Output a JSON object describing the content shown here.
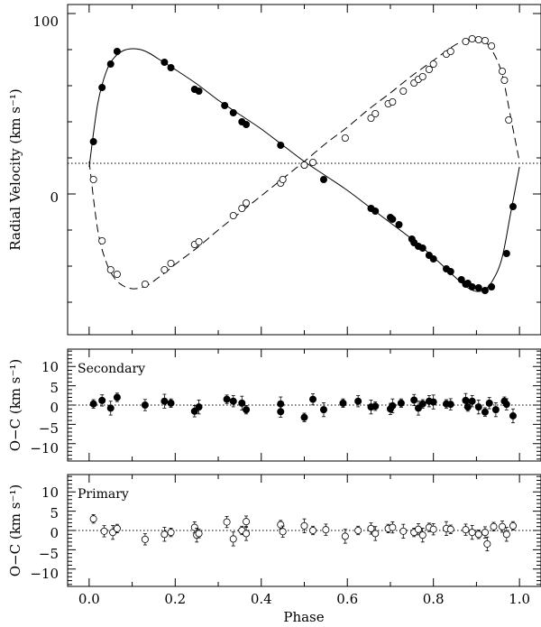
{
  "chart_data": [
    {
      "type": "line",
      "ylabel": "Radial Velocity (km s⁻¹)",
      "xlabel": "",
      "xlim": [
        -0.05,
        1.05
      ],
      "ylim": [
        -78,
        105
      ],
      "yticks_labeled": [
        "0",
        "100"
      ],
      "gamma_velocity": 17,
      "model_curves": [
        {
          "name": "",
          "style": "solid",
          "x": [
            0.0,
            0.02,
            0.04,
            0.06,
            0.08,
            0.1,
            0.12,
            0.14,
            0.16,
            0.18,
            0.2,
            0.25,
            0.3,
            0.35,
            0.4,
            0.45,
            0.5,
            0.55,
            0.6,
            0.65,
            0.7,
            0.75,
            0.8,
            0.85,
            0.88,
            0.9,
            0.92,
            0.94,
            0.96,
            0.98,
            1.0
          ],
          "y": [
            15,
            50,
            68,
            76,
            79.5,
            80.5,
            80,
            78,
            75,
            72,
            69,
            61,
            52,
            44,
            36,
            27,
            18,
            10,
            2,
            -7,
            -16,
            -25,
            -35,
            -46,
            -52,
            -54,
            -53,
            -47,
            -35,
            -10,
            15
          ]
        },
        {
          "name": "",
          "style": "dashed",
          "x": [
            0.0,
            0.02,
            0.04,
            0.06,
            0.08,
            0.1,
            0.12,
            0.14,
            0.16,
            0.18,
            0.2,
            0.25,
            0.3,
            0.35,
            0.4,
            0.45,
            0.5,
            0.55,
            0.6,
            0.65,
            0.7,
            0.75,
            0.8,
            0.85,
            0.88,
            0.9,
            0.92,
            0.94,
            0.96,
            0.98,
            1.0
          ],
          "y": [
            18,
            -20,
            -38,
            -47,
            -51,
            -52.5,
            -52,
            -50,
            -46.5,
            -43,
            -39,
            -30,
            -20,
            -10.5,
            -1,
            8.5,
            18,
            28,
            37,
            47,
            56,
            65.5,
            74,
            82.5,
            85.5,
            86,
            84.5,
            78,
            66,
            42,
            18
          ]
        }
      ],
      "series": [
        {
          "name": "",
          "marker": "filled",
          "x": [
            0.01,
            0.03,
            0.05,
            0.065,
            0.175,
            0.19,
            0.245,
            0.255,
            0.315,
            0.335,
            0.355,
            0.365,
            0.445,
            0.5,
            0.545,
            0.655,
            0.665,
            0.7,
            0.705,
            0.72,
            0.75,
            0.755,
            0.765,
            0.775,
            0.79,
            0.8,
            0.83,
            0.84,
            0.865,
            0.875,
            0.88,
            0.89,
            0.905,
            0.92,
            0.935,
            0.97,
            0.985
          ],
          "y": [
            29,
            59,
            72,
            79,
            73,
            70,
            58,
            57,
            49,
            45,
            40,
            38.5,
            27,
            16,
            8,
            -8,
            -9.5,
            -13,
            -14,
            -17,
            -25,
            -27,
            -29,
            -30,
            -34,
            -36,
            -41.5,
            -43,
            -47.5,
            -50,
            -49.5,
            -51.5,
            -52,
            -53.5,
            -51.5,
            -33,
            -7
          ]
        },
        {
          "name": "",
          "marker": "open",
          "x": [
            0.01,
            0.03,
            0.05,
            0.065,
            0.13,
            0.175,
            0.19,
            0.245,
            0.255,
            0.335,
            0.355,
            0.365,
            0.445,
            0.45,
            0.5,
            0.52,
            0.595,
            0.655,
            0.665,
            0.695,
            0.705,
            0.73,
            0.755,
            0.765,
            0.775,
            0.79,
            0.8,
            0.83,
            0.84,
            0.875,
            0.89,
            0.905,
            0.92,
            0.935,
            0.96,
            0.965,
            0.975
          ],
          "y": [
            8,
            -26,
            -42,
            -44.5,
            -50,
            -42,
            -38.5,
            -28,
            -26.5,
            -12,
            -8,
            -5,
            6,
            8,
            16,
            17.5,
            31,
            42,
            44.5,
            50,
            51,
            57,
            61.5,
            63.5,
            65,
            69,
            72,
            77.5,
            79,
            84.5,
            86,
            85.5,
            85,
            82,
            68,
            63,
            41
          ]
        }
      ]
    },
    {
      "type": "scatter",
      "panel_label": "Secondary",
      "ylabel": "O−C (km s⁻¹)",
      "xlim": [
        -0.05,
        1.05
      ],
      "ylim": [
        -14.5,
        14.5
      ],
      "yticks": [
        "10",
        "5",
        "0",
        "−5",
        "−10"
      ],
      "series": [
        {
          "name": "",
          "marker": "filled",
          "x": [
            0.01,
            0.03,
            0.05,
            0.065,
            0.13,
            0.175,
            0.19,
            0.245,
            0.255,
            0.32,
            0.335,
            0.355,
            0.365,
            0.445,
            0.445,
            0.5,
            0.52,
            0.545,
            0.59,
            0.625,
            0.655,
            0.665,
            0.7,
            0.705,
            0.725,
            0.755,
            0.765,
            0.775,
            0.79,
            0.8,
            0.83,
            0.84,
            0.875,
            0.88,
            0.89,
            0.905,
            0.92,
            0.93,
            0.945,
            0.965,
            0.97,
            0.985
          ],
          "y": [
            0.3,
            1.2,
            -0.8,
            2.0,
            0,
            1.0,
            0.5,
            -1.6,
            -0.5,
            1.5,
            1.0,
            0.5,
            -1.2,
            -1.7,
            0.3,
            -3.2,
            1.5,
            -1.2,
            0.5,
            1.0,
            -0.5,
            -0.3,
            -1.0,
            -0.2,
            0.5,
            1.3,
            -0.8,
            0.3,
            1.0,
            0.8,
            0.3,
            0.2,
            1.2,
            -0.5,
            1.0,
            -0.5,
            -1.8,
            0.5,
            -1.2,
            1.0,
            0.2,
            -2.8
          ]
        }
      ]
    },
    {
      "type": "scatter",
      "panel_label": "Primary",
      "ylabel": "O−C (km s⁻¹)",
      "xlabel": "Phase",
      "xlim": [
        -0.05,
        1.05
      ],
      "ylim": [
        -14.5,
        14.5
      ],
      "yticks": [
        "10",
        "5",
        "0",
        "−5",
        "−10"
      ],
      "xticks": [
        "0.0",
        "0.2",
        "0.4",
        "0.6",
        "0.8",
        "1.0"
      ],
      "series": [
        {
          "name": "",
          "marker": "open",
          "x": [
            0.01,
            0.035,
            0.055,
            0.065,
            0.13,
            0.175,
            0.19,
            0.245,
            0.25,
            0.255,
            0.32,
            0.335,
            0.355,
            0.365,
            0.365,
            0.445,
            0.45,
            0.5,
            0.52,
            0.55,
            0.595,
            0.625,
            0.655,
            0.665,
            0.695,
            0.705,
            0.73,
            0.755,
            0.765,
            0.775,
            0.79,
            0.8,
            0.83,
            0.84,
            0.875,
            0.89,
            0.905,
            0.92,
            0.925,
            0.94,
            0.96,
            0.97,
            0.985
          ],
          "y": [
            3.0,
            -0.2,
            -0.5,
            0.5,
            -2.3,
            -1.0,
            -0.5,
            0.8,
            -1.2,
            -0.8,
            2.2,
            -2.2,
            0.0,
            2.3,
            -0.8,
            1.5,
            -0.3,
            1.2,
            0.0,
            0.2,
            -1.5,
            0.0,
            0.5,
            -0.8,
            0.5,
            0.8,
            -0.2,
            -0.5,
            0.3,
            -1.2,
            0.8,
            0.3,
            0.5,
            0.3,
            0.2,
            -0.5,
            -1.0,
            -0.5,
            -3.5,
            1.0,
            1.0,
            -1.0,
            1.2
          ]
        }
      ]
    }
  ]
}
